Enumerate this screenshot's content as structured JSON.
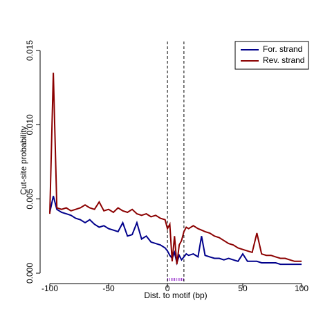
{
  "chart_data": {
    "type": "line",
    "xlabel": "Dist. to motif (bp)",
    "ylabel": "Cut-site probability",
    "x": [
      -100,
      -97,
      -94,
      -90,
      -86,
      -82,
      -78,
      -74,
      -70,
      -66,
      -62,
      -58,
      -54,
      -50,
      -46,
      -42,
      -38,
      -34,
      -30,
      -26,
      -22,
      -18,
      -14,
      -10,
      -6,
      -2,
      0,
      2,
      4,
      6,
      8,
      10,
      12,
      14,
      16,
      18,
      22,
      26,
      29,
      32,
      36,
      40,
      44,
      48,
      52,
      56,
      60,
      64,
      68,
      72,
      76,
      80,
      84,
      88,
      92,
      96,
      100,
      104,
      108,
      112,
      114
    ],
    "series": [
      {
        "name": "For. strand",
        "color": "#00008b",
        "values": [
          0.0041,
          0.0052,
          0.0043,
          0.0041,
          0.004,
          0.0039,
          0.0037,
          0.0036,
          0.0034,
          0.0036,
          0.0033,
          0.0031,
          0.0032,
          0.003,
          0.0029,
          0.0028,
          0.0034,
          0.0025,
          0.0026,
          0.0034,
          0.0023,
          0.0025,
          0.0021,
          0.002,
          0.0019,
          0.0017,
          0.0015,
          0.0012,
          0.001,
          0.0014,
          0.0007,
          0.0012,
          0.0009,
          0.0011,
          0.0013,
          0.0012,
          0.0013,
          0.0011,
          0.0025,
          0.0012,
          0.0011,
          0.001,
          0.001,
          0.0009,
          0.001,
          0.0009,
          0.0008,
          0.0013,
          0.0008,
          0.0008,
          0.0008,
          0.0007,
          0.0007,
          0.0007,
          0.0007,
          0.0006,
          0.0006,
          0.0006,
          0.0006,
          0.0006,
          0.0006
        ]
      },
      {
        "name": "Rev. strand",
        "color": "#8b0000",
        "values": [
          0.004,
          0.0135,
          0.0044,
          0.0043,
          0.0044,
          0.0042,
          0.0043,
          0.0044,
          0.0046,
          0.0044,
          0.0043,
          0.0048,
          0.0042,
          0.0043,
          0.0041,
          0.0044,
          0.0042,
          0.0041,
          0.0043,
          0.004,
          0.0039,
          0.004,
          0.0038,
          0.0039,
          0.0037,
          0.0036,
          0.003,
          0.0033,
          0.0008,
          0.0025,
          0.0006,
          0.0019,
          0.0022,
          0.0028,
          0.0031,
          0.003,
          0.0032,
          0.003,
          0.0029,
          0.0028,
          0.0027,
          0.0025,
          0.0024,
          0.0022,
          0.002,
          0.0019,
          0.0017,
          0.0016,
          0.0015,
          0.0014,
          0.0027,
          0.0013,
          0.0012,
          0.0012,
          0.0011,
          0.001,
          0.001,
          0.0009,
          0.0008,
          0.0008,
          0.0008
        ]
      }
    ],
    "xlim": [
      -100,
      114
    ],
    "xticks": [
      -100,
      -50,
      0,
      {
        "value": 64,
        "label": "50"
      },
      {
        "value": 114,
        "label": "100"
      }
    ],
    "ylim": [
      0,
      0.015
    ],
    "yticks": [
      {
        "value": 0,
        "label": "0.000"
      },
      {
        "value": 0.005,
        "label": "0.005"
      },
      {
        "value": 0.01,
        "label": "0.010"
      },
      {
        "value": 0.015,
        "label": "0.015"
      }
    ],
    "vlines": [
      0,
      14
    ],
    "legend": "topright"
  }
}
